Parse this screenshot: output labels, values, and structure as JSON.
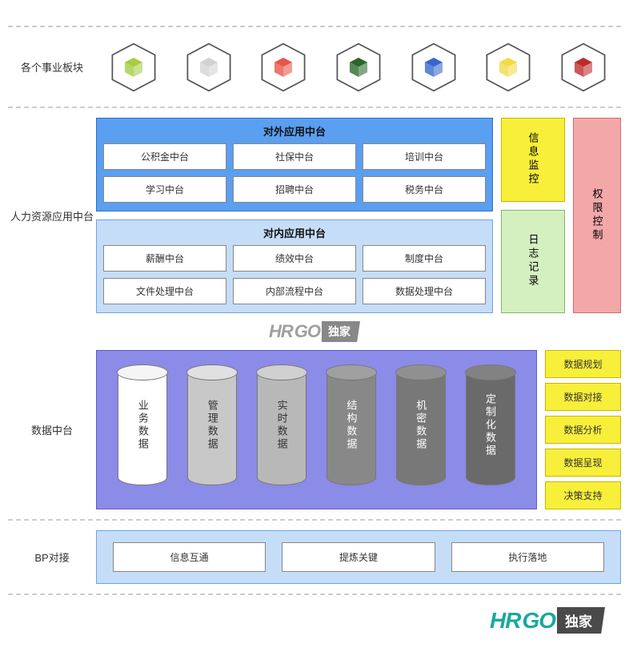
{
  "labels": {
    "row1": "各个事业板块",
    "row2": "人力资源应用中台",
    "row3": "数据中台",
    "row4": "BP对接"
  },
  "cubes": [
    {
      "fill": "#a0c93a",
      "name": "cube-green"
    },
    {
      "fill": "#d0d0d0",
      "name": "cube-gray"
    },
    {
      "fill": "#e84c3d",
      "name": "cube-red"
    },
    {
      "fill": "#1e5f1e",
      "name": "cube-darkgreen"
    },
    {
      "fill": "#2a5fc9",
      "name": "cube-blue"
    },
    {
      "fill": "#f0d93a",
      "name": "cube-yellow"
    },
    {
      "fill": "#b82020",
      "name": "cube-darkred"
    }
  ],
  "external": {
    "title": "对外应用中台",
    "items": [
      "公积金中台",
      "社保中台",
      "培训中台",
      "学习中台",
      "招聘中台",
      "税务中台"
    ]
  },
  "internal": {
    "title": "对内应用中台",
    "items": [
      "薪酬中台",
      "绩效中台",
      "制度中台",
      "文件处理中台",
      "内部流程中台",
      "数据处理中台"
    ]
  },
  "side": {
    "info_monitor": "信息监控",
    "log": "日志记录",
    "permission": "权限控制"
  },
  "cylinders": [
    {
      "label": "业务数据",
      "bg": "#ffffff",
      "top": "#f5f5f5",
      "text": "#333"
    },
    {
      "label": "管理数据",
      "bg": "#c8c8c8",
      "top": "#e0e0e0",
      "text": "#333"
    },
    {
      "label": "实时数据",
      "bg": "#b8b8b8",
      "top": "#d0d0d0",
      "text": "#333"
    },
    {
      "label": "结构数据",
      "bg": "#888888",
      "top": "#a0a0a0",
      "text": "#fff"
    },
    {
      "label": "机密数据",
      "bg": "#787878",
      "top": "#909090",
      "text": "#fff"
    },
    {
      "label": "定制化数据",
      "bg": "#6a6a6a",
      "top": "#828282",
      "text": "#fff"
    }
  ],
  "data_side": [
    "数据规划",
    "数据对接",
    "数据分析",
    "数据呈现",
    "决策支持"
  ],
  "bp": [
    "信息互通",
    "提炼关键",
    "执行落地"
  ],
  "watermark": {
    "brand_a": "HR",
    "brand_b": "GO",
    "tag": "独家"
  },
  "colors": {
    "panel_blue_bg": "#5a9ff0",
    "panel_blue_border": "#2a6fc9",
    "panel_lightblue_bg": "#c5ddf7",
    "panel_lightblue_border": "#6ca5e5",
    "panel_purple_bg": "#8b8be8",
    "panel_purple_border": "#5a5ac9",
    "yellow_bg": "#f7ef3a",
    "yellow_border": "#c9b800",
    "green_bg": "#d4f0c0",
    "green_border": "#7fb860",
    "red_bg": "#f3a8a8",
    "red_border": "#d96b6b",
    "divider": "#cccccc"
  }
}
